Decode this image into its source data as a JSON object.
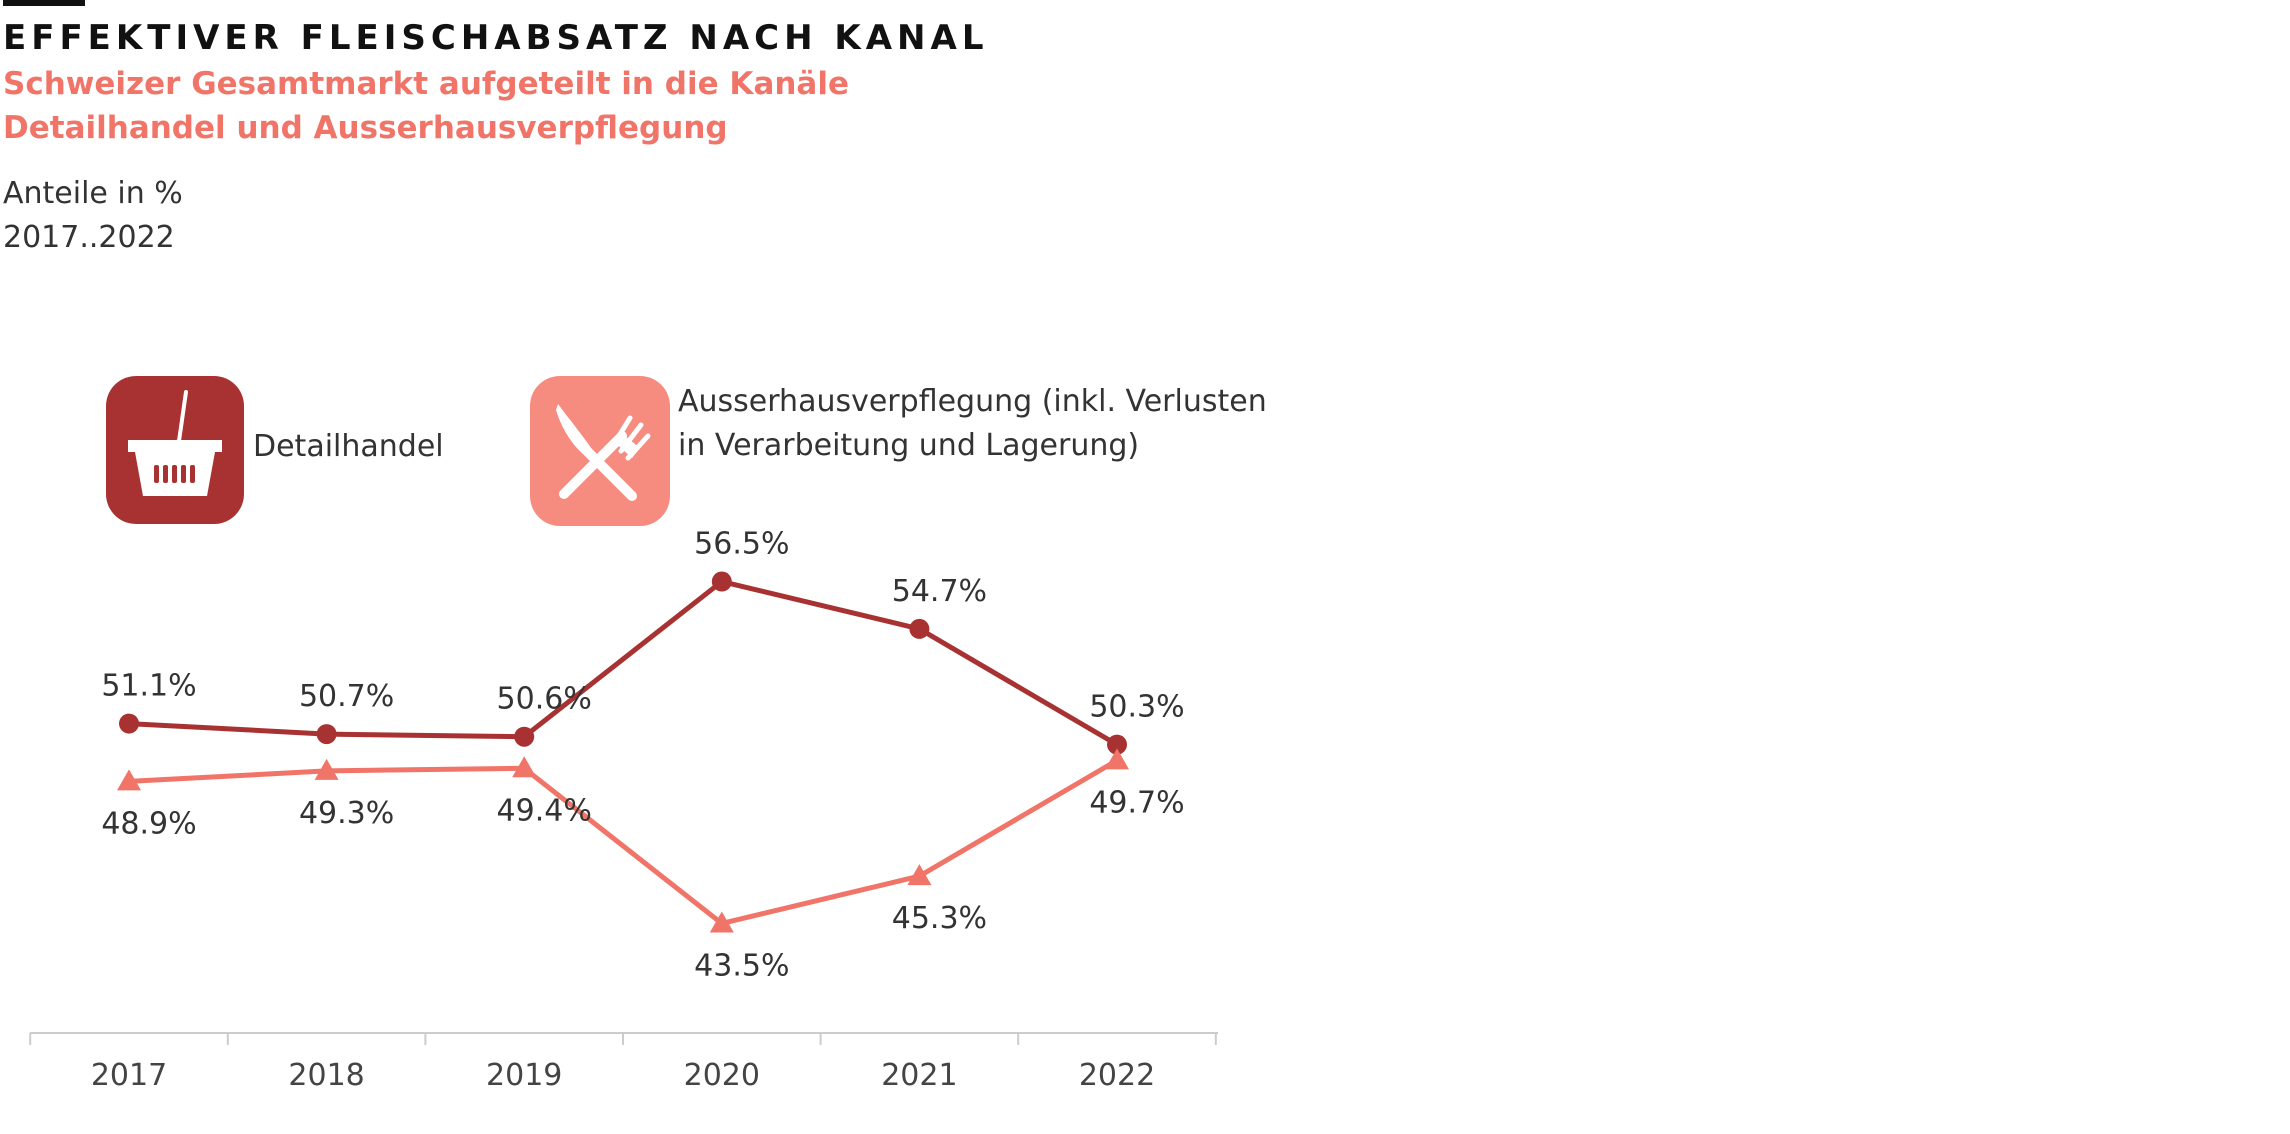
{
  "title": "EFFEKTIVER FLEISCHABSATZ NACH KANAL",
  "subtitle": "Schweizer Gesamtmarkt aufgeteilt in die Kanäle Detailhandel und Ausserhausverpflegung",
  "unit": "Anteile in %",
  "period": "2017..2022",
  "colors": {
    "detailhandel": "#a83232",
    "ausserhaus": "#f07468",
    "ausserhaus_icon_bg": "#f68b80",
    "axis": "#cccccc"
  },
  "legend": [
    {
      "name": "Detailhandel",
      "icon": "shopping-basket-icon"
    },
    {
      "name": "Ausserhausverpflegung (inkl. Verlusten in Verarbeitung und Lagerung)",
      "icon": "knife-fork-icon"
    }
  ],
  "chart_data": {
    "type": "line",
    "x": [
      "2017",
      "2018",
      "2019",
      "2020",
      "2021",
      "2022"
    ],
    "series": [
      {
        "name": "Detailhandel",
        "values": [
          51.1,
          50.7,
          50.6,
          56.5,
          54.7,
          50.3
        ],
        "labels": [
          "51.1%",
          "50.7%",
          "50.6%",
          "56.5%",
          "54.7%",
          "50.3%"
        ],
        "marker": "circle"
      },
      {
        "name": "Ausserhausverpflegung (inkl. Verlusten in Verarbeitung und Lagerung)",
        "values": [
          48.9,
          49.3,
          49.4,
          43.5,
          45.3,
          49.7
        ],
        "labels": [
          "48.9%",
          "49.3%",
          "49.4%",
          "43.5%",
          "45.3%",
          "49.7%"
        ],
        "marker": "triangle"
      }
    ],
    "ylabel": "Anteile in %",
    "grid": false,
    "legend_position": "top-left"
  }
}
